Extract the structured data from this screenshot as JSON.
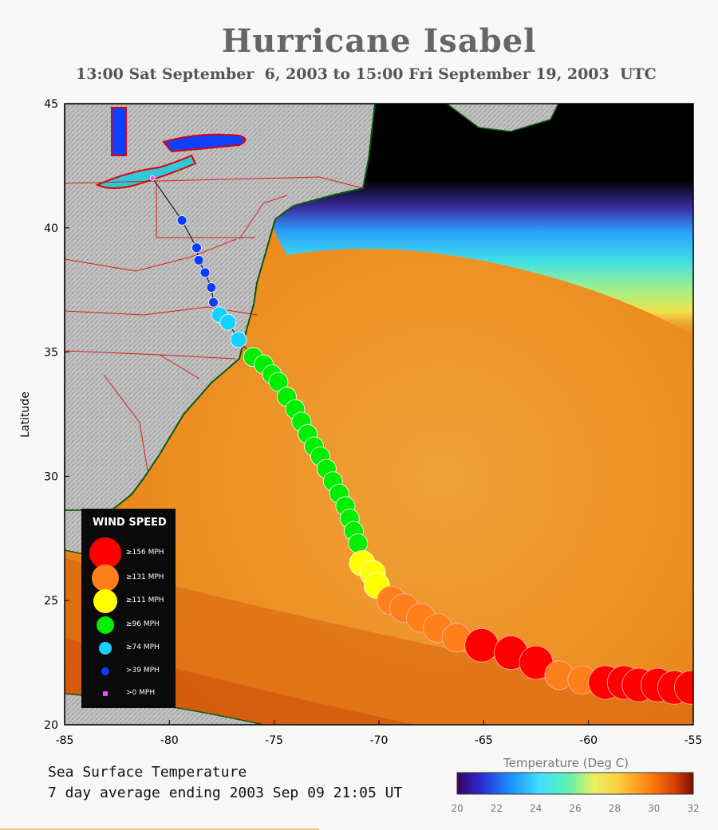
{
  "title": "Hurricane Isabel",
  "subtitle": "13:00 Sat September  6, 2003 to 15:00 Fri September 19, 2003  UTC",
  "axes": {
    "ylabel": "Latitude",
    "x_ticks": [
      "-85",
      "-80",
      "-75",
      "-70",
      "-65",
      "-60",
      "-55"
    ],
    "y_ticks": [
      "45",
      "40",
      "35",
      "30",
      "25",
      "20"
    ]
  },
  "legend": {
    "title": "WIND SPEED",
    "items": [
      {
        "label": "≥156 MPH",
        "color": "#ff0000"
      },
      {
        "label": "≥131 MPH",
        "color": "#ff7f1a"
      },
      {
        "label": "≥111 MPH",
        "color": "#ffff00"
      },
      {
        "label": "≥96 MPH",
        "color": "#00ee00"
      },
      {
        "label": "≥74 MPH",
        "color": "#14d2ff"
      },
      {
        "label": ">39 MPH",
        "color": "#0a3cff"
      },
      {
        "label": ">0 MPH",
        "color": "#ff44ff"
      }
    ]
  },
  "footer": {
    "line1": "Sea Surface Temperature",
    "line2": "7 day average ending 2003 Sep 09 21:05 UT"
  },
  "colorbar": {
    "title": "Temperature (Deg C)",
    "ticks": [
      "20",
      "22",
      "24",
      "26",
      "28",
      "30",
      "32"
    ]
  },
  "track": [
    {
      "lon": -55.1,
      "lat": 21.5,
      "c": 0
    },
    {
      "lon": -55.9,
      "lat": 21.5,
      "c": 0
    },
    {
      "lon": -56.7,
      "lat": 21.6,
      "c": 0
    },
    {
      "lon": -57.6,
      "lat": 21.6,
      "c": 0
    },
    {
      "lon": -58.3,
      "lat": 21.7,
      "c": 0
    },
    {
      "lon": -59.2,
      "lat": 21.7,
      "c": 0
    },
    {
      "lon": -60.3,
      "lat": 21.8,
      "c": 1
    },
    {
      "lon": -61.4,
      "lat": 22.0,
      "c": 1
    },
    {
      "lon": -62.5,
      "lat": 22.5,
      "c": 0
    },
    {
      "lon": -63.7,
      "lat": 22.9,
      "c": 0
    },
    {
      "lon": -65.1,
      "lat": 23.2,
      "c": 0
    },
    {
      "lon": -66.3,
      "lat": 23.5,
      "c": 1
    },
    {
      "lon": -67.2,
      "lat": 23.9,
      "c": 1
    },
    {
      "lon": -68.0,
      "lat": 24.3,
      "c": 1
    },
    {
      "lon": -68.8,
      "lat": 24.7,
      "c": 1
    },
    {
      "lon": -69.4,
      "lat": 25.0,
      "c": 1
    },
    {
      "lon": -70.1,
      "lat": 25.6,
      "c": 2
    },
    {
      "lon": -70.3,
      "lat": 26.1,
      "c": 2
    },
    {
      "lon": -70.8,
      "lat": 26.5,
      "c": 2
    },
    {
      "lon": -71.0,
      "lat": 27.3,
      "c": 3
    },
    {
      "lon": -71.2,
      "lat": 27.8,
      "c": 3
    },
    {
      "lon": -71.4,
      "lat": 28.3,
      "c": 3
    },
    {
      "lon": -71.6,
      "lat": 28.8,
      "c": 3
    },
    {
      "lon": -71.9,
      "lat": 29.3,
      "c": 3
    },
    {
      "lon": -72.2,
      "lat": 29.8,
      "c": 3
    },
    {
      "lon": -72.5,
      "lat": 30.3,
      "c": 3
    },
    {
      "lon": -72.8,
      "lat": 30.8,
      "c": 3
    },
    {
      "lon": -73.1,
      "lat": 31.2,
      "c": 3
    },
    {
      "lon": -73.4,
      "lat": 31.7,
      "c": 3
    },
    {
      "lon": -73.7,
      "lat": 32.2,
      "c": 3
    },
    {
      "lon": -74.0,
      "lat": 32.7,
      "c": 3
    },
    {
      "lon": -74.4,
      "lat": 33.2,
      "c": 3
    },
    {
      "lon": -74.8,
      "lat": 33.8,
      "c": 3
    },
    {
      "lon": -75.1,
      "lat": 34.1,
      "c": 3
    },
    {
      "lon": -75.5,
      "lat": 34.5,
      "c": 3
    },
    {
      "lon": -76.0,
      "lat": 34.8,
      "c": 3
    },
    {
      "lon": -76.7,
      "lat": 35.5,
      "c": 4
    },
    {
      "lon": -77.2,
      "lat": 36.2,
      "c": 4
    },
    {
      "lon": -77.6,
      "lat": 36.5,
      "c": 4
    },
    {
      "lon": -77.9,
      "lat": 37.0,
      "c": 5
    },
    {
      "lon": -78.0,
      "lat": 37.6,
      "c": 5
    },
    {
      "lon": -78.3,
      "lat": 38.2,
      "c": 5
    },
    {
      "lon": -78.6,
      "lat": 38.7,
      "c": 5
    },
    {
      "lon": -78.7,
      "lat": 39.2,
      "c": 5
    },
    {
      "lon": -79.4,
      "lat": 40.3,
      "c": 5
    },
    {
      "lon": -80.8,
      "lat": 42.0,
      "c": 6
    }
  ]
}
